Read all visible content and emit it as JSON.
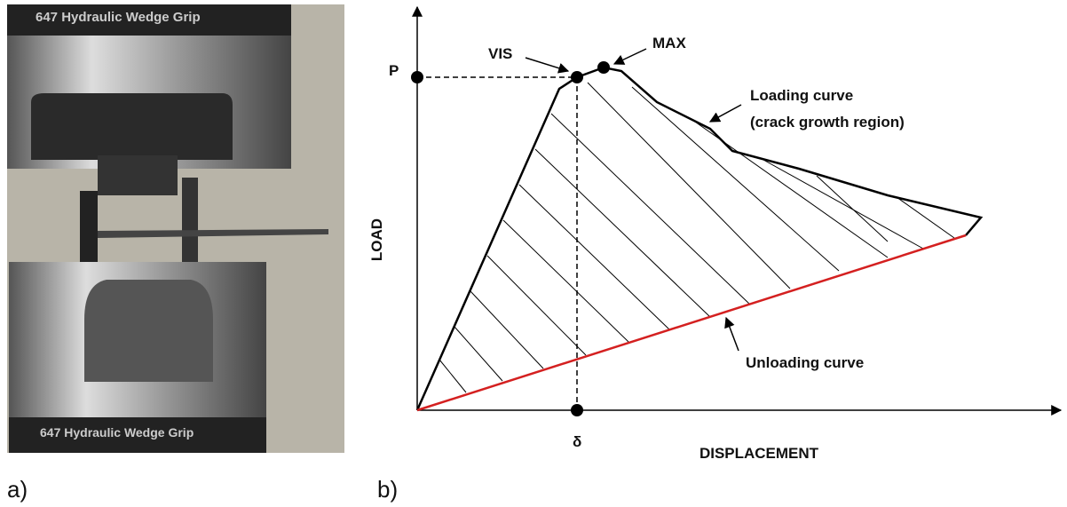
{
  "photo": {
    "labels": [
      "647 Hydraulic Wedge Grip",
      "647 Hydraulic Wedge Grip"
    ],
    "caption": "a)"
  },
  "diagram": {
    "caption": "b)",
    "y_axis_label": "LOAD",
    "x_axis_label": "DISPLACEMENT",
    "load_point": "P",
    "displacement_point": "δ",
    "vis_label": "VIS",
    "max_label": "MAX",
    "loading_curve_label": [
      "Loading curve",
      "(crack growth region)"
    ],
    "unloading_curve_label": "Unloading curve"
  }
}
